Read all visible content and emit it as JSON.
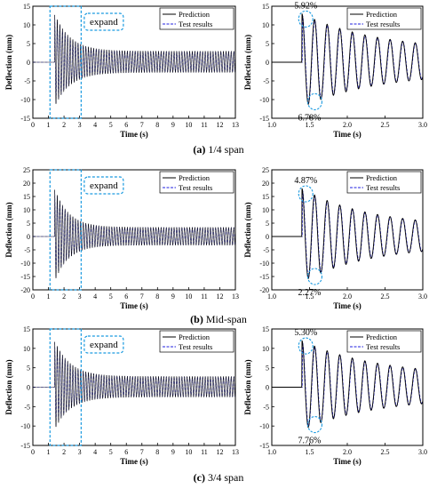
{
  "chart_data": [
    {
      "type": "line",
      "view": "full",
      "xlabel": "Time (s)",
      "ylabel": "Deflection (mm)",
      "xlim": [
        0,
        13
      ],
      "ylim": [
        -15,
        15
      ],
      "xticks": [
        "0",
        "1",
        "2",
        "3",
        "4",
        "5",
        "6",
        "7",
        "8",
        "9",
        "10",
        "11",
        "12",
        "13"
      ],
      "yticks": [
        "-15",
        "-10",
        "-5",
        "0",
        "5",
        "10",
        "15"
      ],
      "series": [
        {
          "name": "Prediction",
          "color": "#000000"
        },
        {
          "name": "Test results",
          "color": "#2020e0"
        }
      ],
      "signal": {
        "start": 1.4,
        "peak": 13,
        "trough": -12,
        "freq": 6,
        "decay": 1.0,
        "floor": 3.0
      },
      "annotation": "expand",
      "legend": "top-right"
    },
    {
      "type": "line",
      "view": "zoom",
      "xlabel": "Time (s)",
      "ylabel": "Deflection (mm)",
      "xlim": [
        1.0,
        3.0
      ],
      "ylim": [
        -15,
        15
      ],
      "xticks": [
        "1.0",
        "1.5",
        "2.0",
        "2.5",
        "3.0"
      ],
      "yticks": [
        "-15",
        "-10",
        "-5",
        "0",
        "5",
        "10",
        "15"
      ],
      "series": [
        {
          "name": "Prediction",
          "color": "#000000"
        },
        {
          "name": "Test results",
          "color": "#2020e0"
        }
      ],
      "signal": {
        "start": 1.4,
        "peak": 13,
        "trough": -12,
        "freq": 6,
        "decay": 1.0,
        "floor": 3.0
      },
      "peak_error": "5.92%",
      "trough_error": "6.78%",
      "legend": "top-right"
    },
    {
      "type": "line",
      "view": "full",
      "xlabel": "Time (s)",
      "ylabel": "Deflection (mm)",
      "xlim": [
        0,
        13
      ],
      "ylim": [
        -20,
        25
      ],
      "xticks": [
        "0",
        "1",
        "2",
        "3",
        "4",
        "5",
        "6",
        "7",
        "8",
        "9",
        "10",
        "11",
        "12",
        "13"
      ],
      "yticks": [
        "-20",
        "-15",
        "-10",
        "-5",
        "0",
        "5",
        "10",
        "15",
        "20",
        "25"
      ],
      "series": [
        {
          "name": "Prediction",
          "color": "#000000"
        },
        {
          "name": "Test results",
          "color": "#2020e0"
        }
      ],
      "signal": {
        "start": 1.4,
        "peak": 18,
        "trough": -17,
        "freq": 6,
        "decay": 0.9,
        "floor": 3.5
      },
      "annotation": "expand",
      "legend": "top-right"
    },
    {
      "type": "line",
      "view": "zoom",
      "xlabel": "Time (s)",
      "ylabel": "Deflection (mm)",
      "xlim": [
        1.0,
        3.0
      ],
      "ylim": [
        -20,
        25
      ],
      "xticks": [
        "1.0",
        "1.5",
        "2.0",
        "2.5",
        "3.0"
      ],
      "yticks": [
        "-20",
        "-15",
        "-10",
        "-5",
        "0",
        "5",
        "10",
        "15",
        "20",
        "25"
      ],
      "series": [
        {
          "name": "Prediction",
          "color": "#000000"
        },
        {
          "name": "Test results",
          "color": "#2020e0"
        }
      ],
      "signal": {
        "start": 1.4,
        "peak": 18,
        "trough": -17,
        "freq": 6,
        "decay": 0.9,
        "floor": 3.5
      },
      "peak_error": "4.87%",
      "trough_error": "2.27%",
      "legend": "top-right"
    },
    {
      "type": "line",
      "view": "full",
      "xlabel": "Time (s)",
      "ylabel": "Deflection (mm)",
      "xlim": [
        0,
        13
      ],
      "ylim": [
        -15,
        15
      ],
      "xticks": [
        "0",
        "1",
        "2",
        "3",
        "4",
        "5",
        "6",
        "7",
        "8",
        "9",
        "10",
        "11",
        "12",
        "13"
      ],
      "yticks": [
        "-15",
        "-10",
        "-5",
        "0",
        "5",
        "10",
        "15"
      ],
      "series": [
        {
          "name": "Prediction",
          "color": "#000000"
        },
        {
          "name": "Test results",
          "color": "#2020e0"
        }
      ],
      "signal": {
        "start": 1.4,
        "peak": 12,
        "trough": -11,
        "freq": 6,
        "decay": 1.0,
        "floor": 2.8
      },
      "annotation": "expand",
      "legend": "top-right"
    },
    {
      "type": "line",
      "view": "zoom",
      "xlabel": "Time (s)",
      "ylabel": "Deflection (mm)",
      "xlim": [
        1.0,
        3.0
      ],
      "ylim": [
        -15,
        15
      ],
      "xticks": [
        "1.0",
        "1.5",
        "2.0",
        "2.5",
        "3.0"
      ],
      "yticks": [
        "-15",
        "-10",
        "-5",
        "0",
        "5",
        "10",
        "15"
      ],
      "series": [
        {
          "name": "Prediction",
          "color": "#000000"
        },
        {
          "name": "Test results",
          "color": "#2020e0"
        }
      ],
      "signal": {
        "start": 1.4,
        "peak": 12,
        "trough": -11,
        "freq": 6,
        "decay": 1.0,
        "floor": 2.8
      },
      "peak_error": "5.30%",
      "trough_error": "7.76%",
      "legend": "top-right"
    }
  ],
  "captions": [
    {
      "letter": "(a)",
      "text": " 1/4 span"
    },
    {
      "letter": "(b)",
      "text": " Mid-span"
    },
    {
      "letter": "(c)",
      "text": " 3/4 span"
    }
  ],
  "colors": {
    "highlight": "#1a9ae0",
    "prediction": "#000000",
    "test": "#2020e0"
  }
}
